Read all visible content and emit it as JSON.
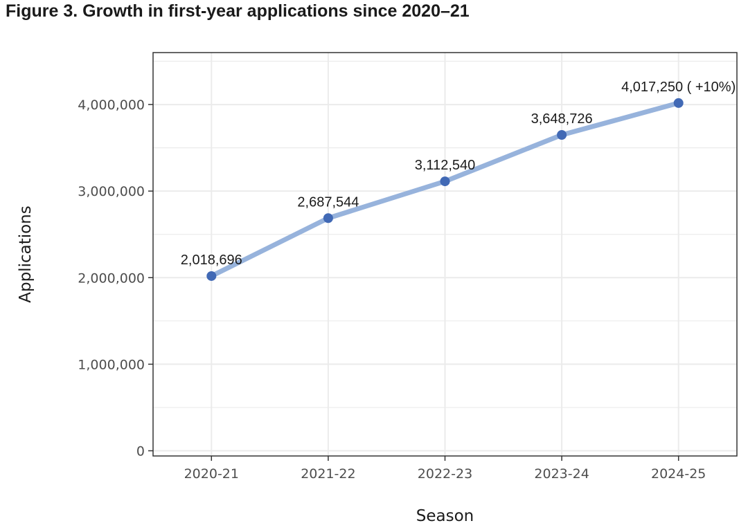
{
  "chart_data": {
    "type": "line",
    "title": "Figure 3. Growth in first-year applications since 2020–21",
    "xlabel": "Season",
    "ylabel": "Applications",
    "categories": [
      "2020-21",
      "2021-22",
      "2022-23",
      "2023-24",
      "2024-25"
    ],
    "series": [
      {
        "values": [
          2018696,
          2687544,
          3112540,
          3648726,
          4017250
        ],
        "labels": [
          "2,018,696",
          "2,687,544",
          "3,112,540",
          "3,648,726",
          "4,017,250 ( +10%)"
        ]
      }
    ],
    "yticks": [
      0,
      1000000,
      2000000,
      3000000,
      4000000
    ],
    "ytick_labels": [
      "0",
      "1,000,000",
      "2,000,000",
      "3,000,000",
      "4,000,000"
    ],
    "ylim": [
      -60000,
      4600000
    ],
    "grid": true,
    "colors": {
      "line": "#97b3dc",
      "point": "#4169b5",
      "grid": "#ebebeb",
      "panel_border": "#333333"
    }
  }
}
